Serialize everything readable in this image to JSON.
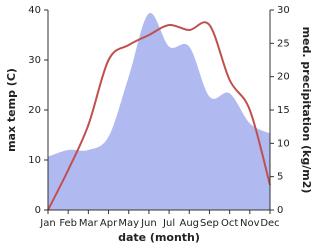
{
  "chart_data": {
    "type": "line-area",
    "categories": [
      "Jan",
      "Feb",
      "Mar",
      "Apr",
      "May",
      "Jun",
      "Jul",
      "Aug",
      "Sep",
      "Oct",
      "Nov",
      "Dec"
    ],
    "x_label": "date (month)",
    "y_label": "max temp (C)",
    "y2_label": "med. precipitation (kg/m2)",
    "ylim": [
      0,
      40
    ],
    "yticks": [
      0,
      10,
      20,
      30,
      40
    ],
    "y2lim": [
      0,
      30
    ],
    "y2ticks": [
      0,
      5,
      10,
      15,
      20,
      25,
      30
    ],
    "series": [
      {
        "name": "max temp",
        "type": "line",
        "color": "#c0504d",
        "values": [
          0,
          8,
          17,
          30,
          33,
          35,
          37,
          36,
          37,
          26,
          20,
          5
        ]
      },
      {
        "name": "precipitation",
        "type": "area",
        "axis": "y2",
        "color": "#b0baf0",
        "values": [
          8,
          9,
          9,
          11,
          20,
          29.5,
          24.5,
          24.5,
          17,
          17.5,
          13,
          11.5
        ]
      }
    ]
  }
}
